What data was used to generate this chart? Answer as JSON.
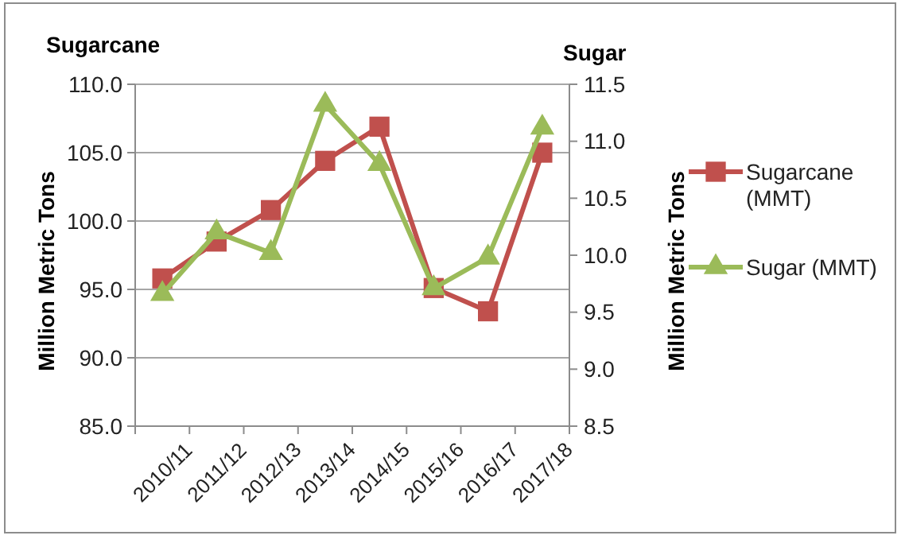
{
  "chart_data": {
    "type": "line",
    "categories": [
      "2010/11",
      "2011/12",
      "2012/13",
      "2013/14",
      "2014/15",
      "2015/16",
      "2016/17",
      "2017/18"
    ],
    "series": [
      {
        "name": "Sugarcane (MMT)",
        "color": "#c0504d",
        "marker": "square",
        "values": [
          95.8,
          98.5,
          100.8,
          104.4,
          106.9,
          95.1,
          93.4,
          105.0
        ]
      },
      {
        "name": "Sugar (MMT)",
        "color": "#9bbb59",
        "marker": "triangle",
        "axis": "y2",
        "values": [
          9.66,
          10.2,
          10.02,
          11.32,
          10.8,
          9.71,
          9.98,
          11.12
        ]
      }
    ],
    "ylabel": "Million Metric Tons",
    "y2label": "Million Metric Tons",
    "ylim": [
      85,
      110
    ],
    "yticks": [
      {
        "value": 85,
        "label": "85.0"
      },
      {
        "value": 90,
        "label": "90.0"
      },
      {
        "value": 95,
        "label": "95.0"
      },
      {
        "value": 100,
        "label": "100.0"
      },
      {
        "value": 105,
        "label": "105.0"
      },
      {
        "value": 110,
        "label": "110.0"
      }
    ],
    "y2lim": [
      8.5,
      11.5
    ],
    "y2ticks": [
      {
        "value": 8.5,
        "label": "8.5"
      },
      {
        "value": 9,
        "label": "9.0"
      },
      {
        "value": 9.5,
        "label": "9.5"
      },
      {
        "value": 10,
        "label": "10.0"
      },
      {
        "value": 10.5,
        "label": "10.5"
      },
      {
        "value": 11,
        "label": "11.0"
      },
      {
        "value": 11.5,
        "label": "11.5"
      }
    ],
    "annotations": [
      "Sugarcane",
      "Sugar"
    ],
    "grid": "y",
    "legend": "right"
  }
}
